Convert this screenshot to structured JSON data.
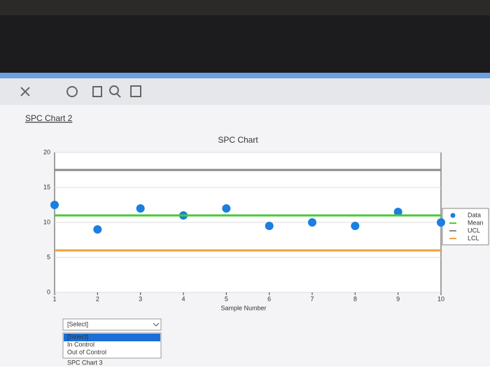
{
  "link": "SPC Chart 2",
  "dropdown": {
    "selected": "[Select]",
    "options": [
      "[Select]",
      "In Control",
      "Out of Control"
    ]
  },
  "next_link": "SPC Chart 3",
  "chart_data": {
    "type": "scatter",
    "title": "SPC Chart",
    "x_label": "Sample Number",
    "x": [
      1,
      2,
      3,
      4,
      5,
      6,
      7,
      8,
      9,
      10
    ],
    "xlim": [
      1,
      10
    ],
    "xticks": [
      1,
      2,
      3,
      4,
      5,
      6,
      7,
      8,
      9,
      10
    ],
    "ylim": [
      0,
      20
    ],
    "yticks": [
      0,
      5,
      10,
      15,
      20
    ],
    "grid": true,
    "legend": "right",
    "series": [
      {
        "name": "Data",
        "color": "#1a7fe0",
        "mode": "markers",
        "values": [
          12.5,
          9,
          12,
          11,
          12,
          9.5,
          10,
          9.5,
          11.5,
          10
        ]
      },
      {
        "name": "Mean",
        "color": "#44cc33",
        "mode": "line",
        "values": [
          11,
          11,
          11,
          11,
          11,
          11,
          11,
          11,
          11,
          11
        ]
      },
      {
        "name": "UCL",
        "color": "#8a8a8a",
        "mode": "line",
        "values": [
          17.5,
          17.5,
          17.5,
          17.5,
          17.5,
          17.5,
          17.5,
          17.5,
          17.5,
          17.5
        ]
      },
      {
        "name": "LCL",
        "color": "#f0a040",
        "mode": "line",
        "values": [
          6,
          6,
          6,
          6,
          6,
          6,
          6,
          6,
          6,
          6
        ]
      }
    ]
  }
}
